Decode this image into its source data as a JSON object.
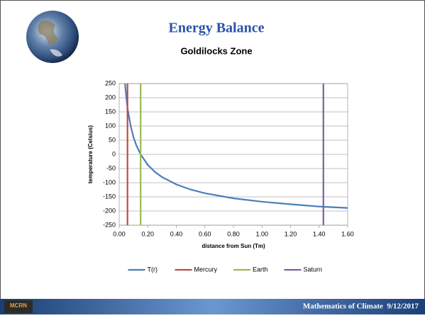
{
  "chart_data": {
    "type": "line",
    "title": "Energy Balance",
    "subtitle": "Goldilocks Zone",
    "xlabel": "distance from Sun (Tm)",
    "ylabel": "temperature (Celsius)",
    "xlim": [
      0,
      1.6
    ],
    "ylim": [
      -250,
      250
    ],
    "xticks": [
      {
        "value": 0,
        "label": "0.00"
      },
      {
        "value": 0.2,
        "label": "0.20"
      },
      {
        "value": 0.4,
        "label": "0.40"
      },
      {
        "value": 0.6,
        "label": "0.60"
      },
      {
        "value": 0.8,
        "label": "0.80"
      },
      {
        "value": 1.0,
        "label": "1.00"
      },
      {
        "value": 1.2,
        "label": "1.20"
      },
      {
        "value": 1.4,
        "label": "1.40"
      },
      {
        "value": 1.6,
        "label": "1.60"
      }
    ],
    "yticks": [
      -250,
      -200,
      -150,
      -100,
      -50,
      0,
      50,
      100,
      150,
      200,
      250
    ],
    "grid": true,
    "legend": "bottom",
    "series": [
      {
        "name": "T(r)",
        "color": "#4a7ebb",
        "x": [
          0.041,
          0.05,
          0.06,
          0.08,
          0.1,
          0.12,
          0.15,
          0.2,
          0.25,
          0.3,
          0.4,
          0.5,
          0.6,
          0.8,
          1.0,
          1.2,
          1.4,
          1.6
        ],
        "values": [
          249,
          200,
          158,
          101,
          61,
          32,
          0,
          -37,
          -62,
          -80,
          -106,
          -124,
          -137,
          -155,
          -167,
          -176,
          -184,
          -189
        ]
      },
      {
        "name": "Mercury",
        "color": "#be4b48",
        "x": [
          0.058,
          0.058
        ],
        "values": [
          -250,
          250
        ]
      },
      {
        "name": "Earth",
        "color": "#98b954",
        "x": [
          0.15,
          0.15
        ],
        "values": [
          -250,
          250
        ]
      },
      {
        "name": "Saturn",
        "color": "#7d60a0",
        "x": [
          1.43,
          1.43
        ],
        "values": [
          -250,
          250
        ]
      }
    ]
  },
  "footer": {
    "logo": "MCRN",
    "text": "Mathematics of Climate  9/12/2017"
  }
}
